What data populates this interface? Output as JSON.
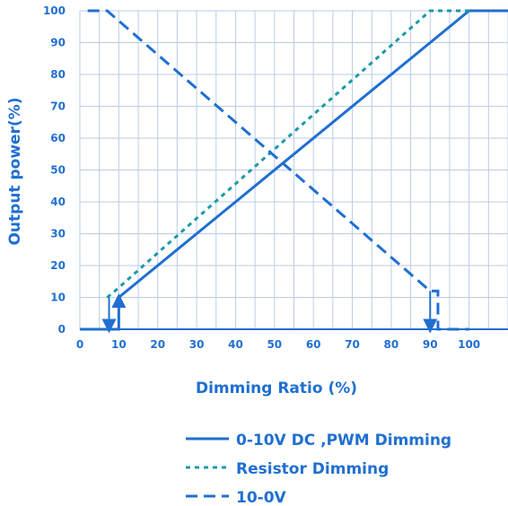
{
  "chart_data": {
    "type": "line",
    "xlabel": "Dimming  Ratio (%)",
    "ylabel": "Output power(%)",
    "xlim": [
      0,
      110
    ],
    "ylim": [
      0,
      100
    ],
    "x_ticks": [
      0,
      10,
      20,
      30,
      40,
      50,
      60,
      70,
      80,
      90,
      100
    ],
    "y_ticks": [
      0,
      10,
      20,
      30,
      40,
      50,
      60,
      70,
      80,
      90,
      100
    ],
    "grid": true,
    "legend_position": "bottom",
    "colors": {
      "line": "#1f6fd1",
      "dotted": "#1a9aa8",
      "grid": "#b9cde6"
    },
    "series": [
      {
        "name": "0-10V DC ,PWM Dimming",
        "style": "solid",
        "points": [
          [
            0,
            0
          ],
          [
            10,
            0
          ],
          [
            10,
            10
          ],
          [
            100,
            100
          ],
          [
            110,
            100
          ]
        ]
      },
      {
        "name": "Resistor Dimming",
        "style": "dotted",
        "points": [
          [
            7,
            10
          ],
          [
            9,
            12
          ],
          [
            90,
            100
          ],
          [
            100,
            100
          ]
        ]
      },
      {
        "name": "10-0V",
        "style": "dashed",
        "points": [
          [
            2,
            100
          ],
          [
            7,
            100
          ],
          [
            90,
            12
          ],
          [
            92,
            12
          ],
          [
            92,
            0
          ],
          [
            100,
            0
          ]
        ]
      }
    ],
    "annotations": [
      {
        "type": "arrow",
        "direction": "down",
        "x": 7.5,
        "y_from": 10,
        "y_to": 1
      },
      {
        "type": "arrow",
        "direction": "up",
        "x": 10,
        "y_from": 0,
        "y_to": 9
      },
      {
        "type": "arrow",
        "direction": "down",
        "x": 90,
        "y_from": 12,
        "y_to": 1
      }
    ]
  }
}
